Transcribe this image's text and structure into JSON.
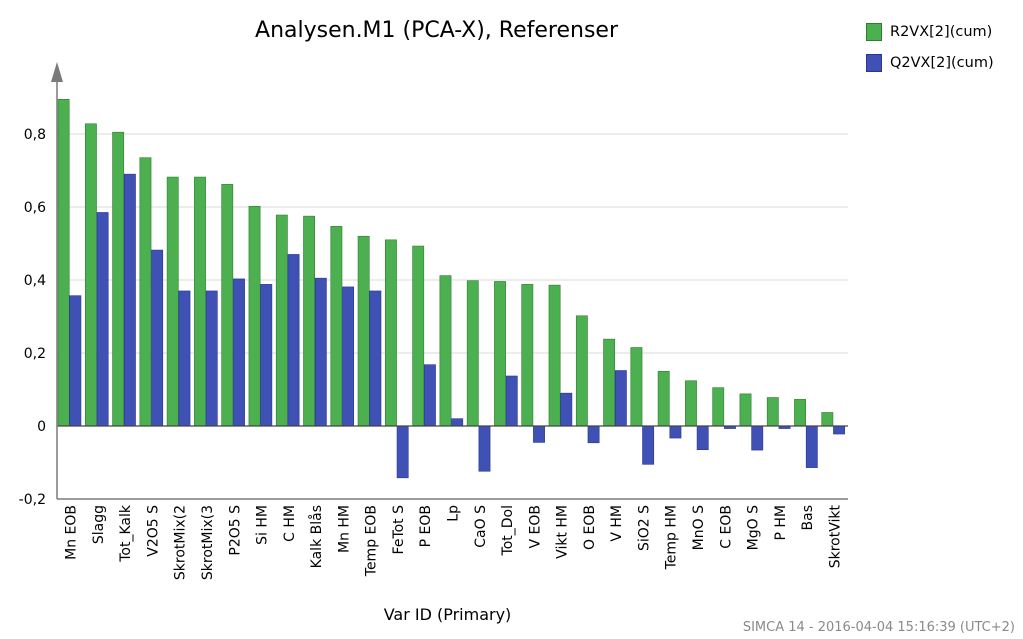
{
  "chart_data": {
    "type": "bar",
    "title": "Analysen.M1 (PCA-X), Referenser",
    "xlabel": "Var ID (Primary)",
    "ylabel": "",
    "ylim": [
      -0.2,
      0.93
    ],
    "yticks": [
      -0.2,
      0,
      0.2,
      0.4,
      0.6,
      0.8
    ],
    "ytick_labels": [
      "-0,2",
      "0",
      "0,2",
      "0,4",
      "0,6",
      "0,8"
    ],
    "grid": true,
    "legend_position": "top-right",
    "categories": [
      "Mn EOB",
      "Slagg",
      "Tot_Kalk",
      "V2O5 S",
      "SkrotMix(2",
      "SkrotMix(3",
      "P2O5 S",
      "Si HM",
      "C HM",
      "Kalk Blås",
      "Mn HM",
      "Temp EOB",
      "FeTot S",
      "P EOB",
      "Lp",
      "CaO S",
      "Tot_Dol",
      "V EOB",
      "Vikt HM",
      "O EOB",
      "V HM",
      "SiO2 S",
      "Temp HM",
      "MnO S",
      "C EOB",
      "MgO S",
      "P HM",
      "Bas",
      "SkrotVikt"
    ],
    "series": [
      {
        "name": "R2VX[2](cum)",
        "color": "#4caf50",
        "values": [
          0.895,
          0.828,
          0.805,
          0.735,
          0.682,
          0.682,
          0.662,
          0.602,
          0.578,
          0.575,
          0.547,
          0.52,
          0.51,
          0.493,
          0.412,
          0.398,
          0.396,
          0.388,
          0.386,
          0.302,
          0.238,
          0.215,
          0.15,
          0.124,
          0.105,
          0.088,
          0.078,
          0.073,
          0.037
        ]
      },
      {
        "name": "Q2VX[2](cum)",
        "color": "#3f51b5",
        "values": [
          0.357,
          0.585,
          0.69,
          0.482,
          0.37,
          0.37,
          0.403,
          0.388,
          0.47,
          0.405,
          0.381,
          0.37,
          -0.142,
          0.168,
          0.02,
          -0.124,
          0.137,
          -0.045,
          0.09,
          -0.046,
          0.152,
          -0.105,
          -0.033,
          -0.065,
          -0.007,
          -0.066,
          -0.007,
          -0.114,
          -0.022
        ]
      }
    ]
  },
  "footer": "SIMCA 14 - 2016-04-04 15:16:39 (UTC+2)"
}
